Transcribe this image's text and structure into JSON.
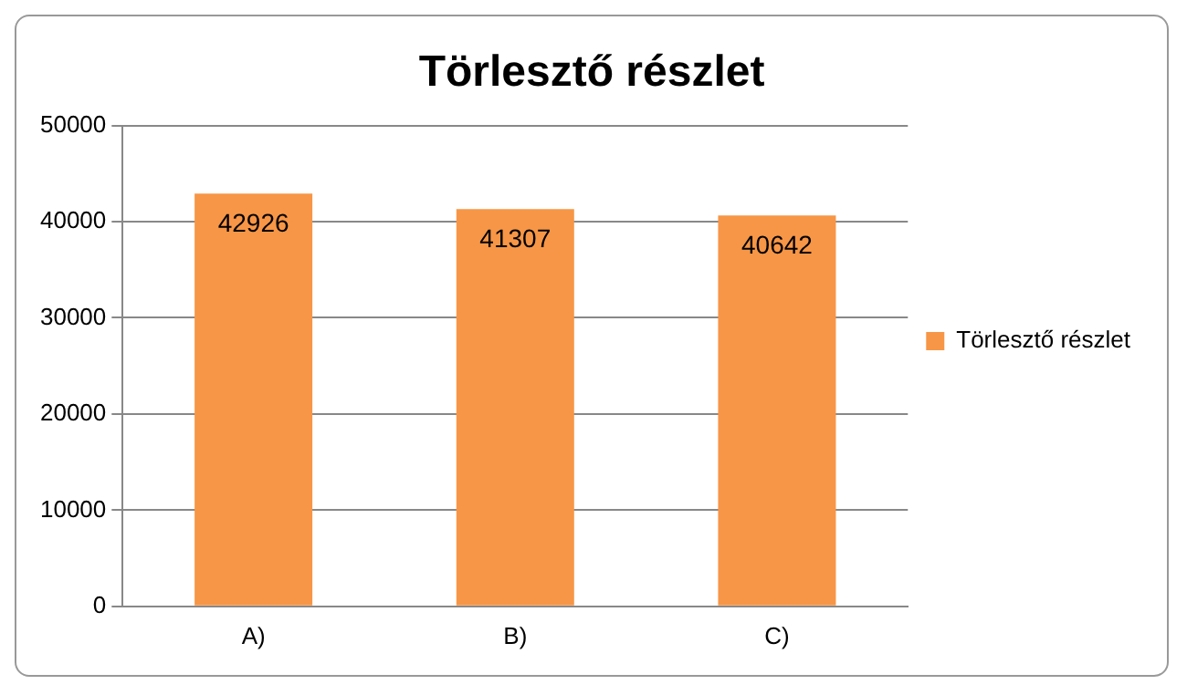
{
  "chart_data": {
    "type": "bar",
    "title": "Törlesztő részlet",
    "categories": [
      "A)",
      "B)",
      "C)"
    ],
    "series": [
      {
        "name": "Törlesztő részlet",
        "color": "#f79646",
        "values": [
          42926,
          41307,
          40642
        ]
      }
    ],
    "ylim": [
      0,
      50000
    ],
    "yticks": [
      0,
      10000,
      20000,
      30000,
      40000,
      50000
    ],
    "grid": "y",
    "legend": "right",
    "data_labels": true
  }
}
